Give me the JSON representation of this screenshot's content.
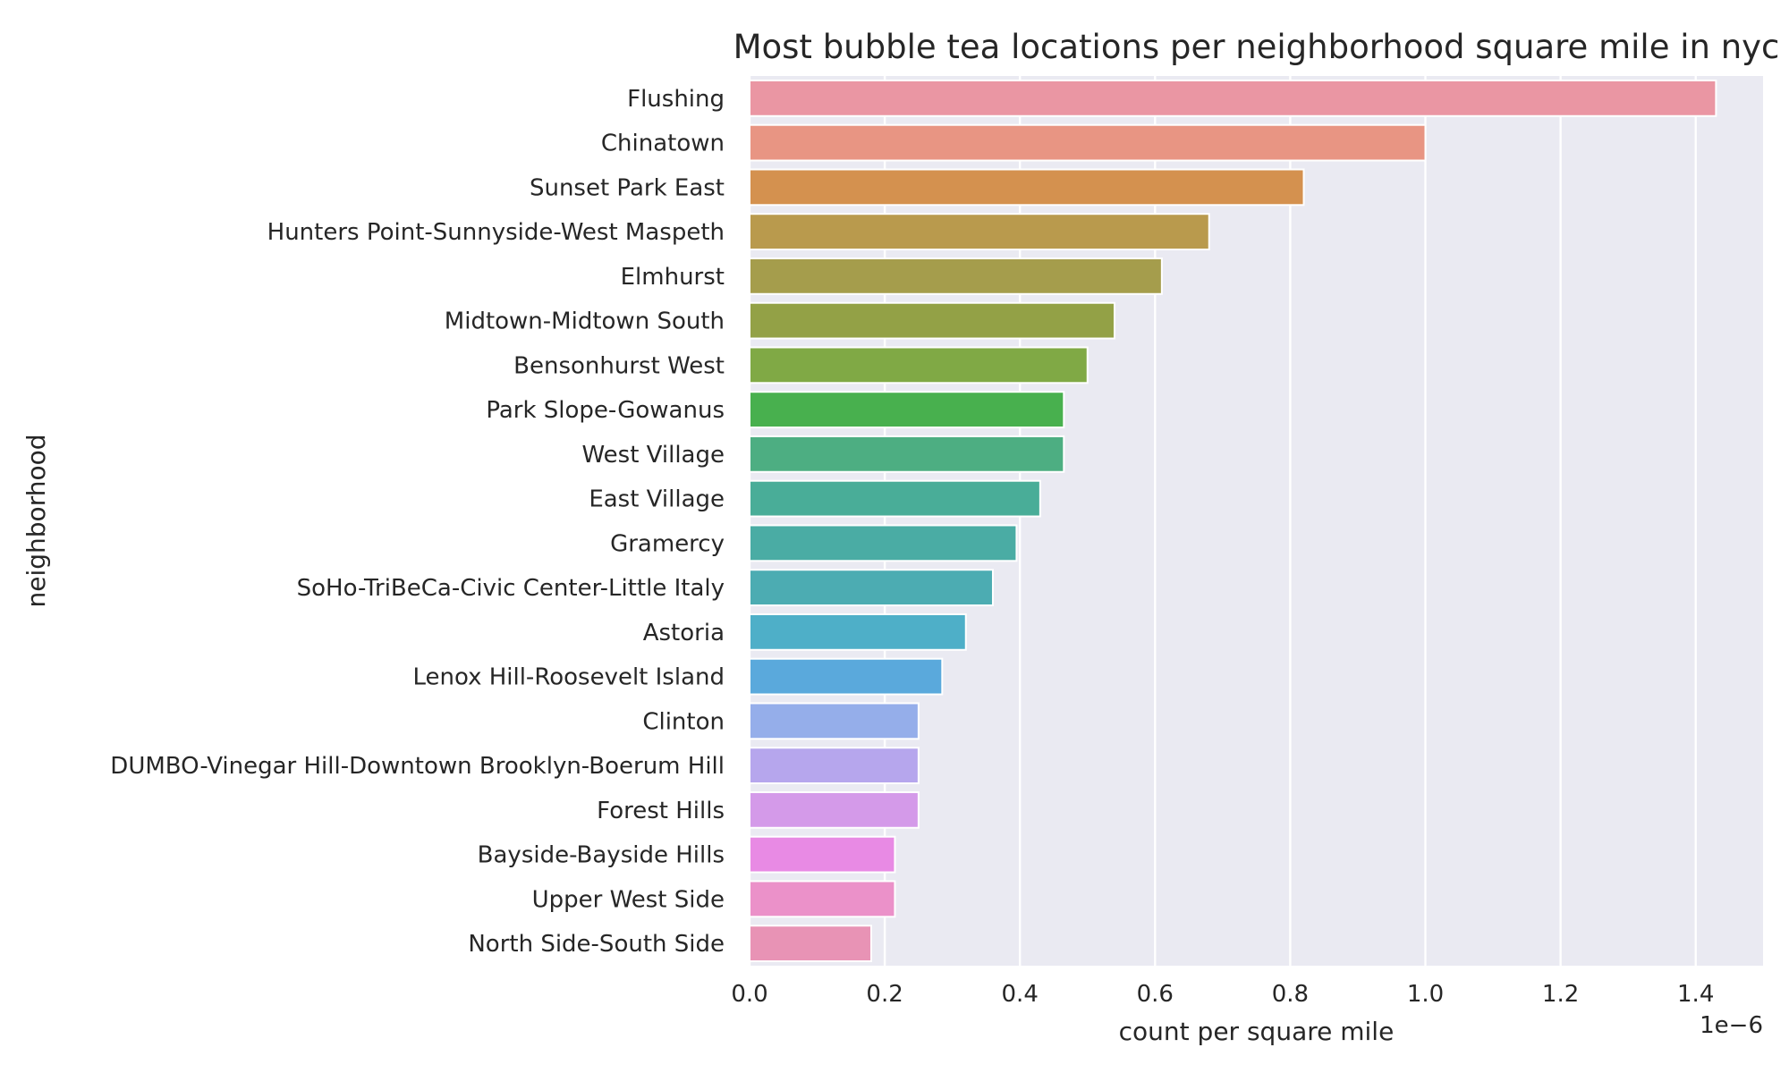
{
  "chart_data": {
    "type": "bar",
    "orientation": "horizontal",
    "title": "Most bubble tea locations per neighborhood square mile in nyc",
    "xlabel": "count per square mile",
    "ylabel": "neighborhood",
    "x_scale_label": "1e−6",
    "xlim": [
      0,
      1.5
    ],
    "x_ticks": [
      "0.0",
      "0.2",
      "0.4",
      "0.6",
      "0.8",
      "1.0",
      "1.2",
      "1.4"
    ],
    "grid": true,
    "legend": "none",
    "background": "#eaeaf2",
    "categories": [
      "Flushing",
      "Chinatown",
      "Sunset Park East",
      "Hunters Point-Sunnyside-West Maspeth",
      "Elmhurst",
      "Midtown-Midtown South",
      "Bensonhurst West",
      "Park Slope-Gowanus",
      "West Village",
      "East Village",
      "Gramercy",
      "SoHo-TriBeCa-Civic Center-Little Italy",
      "Astoria",
      "Lenox Hill-Roosevelt Island",
      "Clinton",
      "DUMBO-Vinegar Hill-Downtown Brooklyn-Boerum Hill",
      "Forest Hills",
      "Bayside-Bayside Hills",
      "Upper West Side",
      "North Side-South Side"
    ],
    "values": [
      1.43,
      1.0,
      0.82,
      0.68,
      0.61,
      0.54,
      0.5,
      0.465,
      0.465,
      0.43,
      0.395,
      0.36,
      0.32,
      0.285,
      0.25,
      0.25,
      0.25,
      0.215,
      0.215,
      0.18
    ],
    "colors": [
      "#ea96a3",
      "#e89583",
      "#d4914f",
      "#b99a4d",
      "#a59d4c",
      "#93a146",
      "#80a945",
      "#48b04e",
      "#4dae82",
      "#49ad98",
      "#4aaca4",
      "#4cacb2",
      "#4eafc8",
      "#5aa9dc",
      "#95aeea",
      "#b6a6ed",
      "#d49ae9",
      "#e88ae4",
      "#eb91c9",
      "#e893b5"
    ]
  }
}
